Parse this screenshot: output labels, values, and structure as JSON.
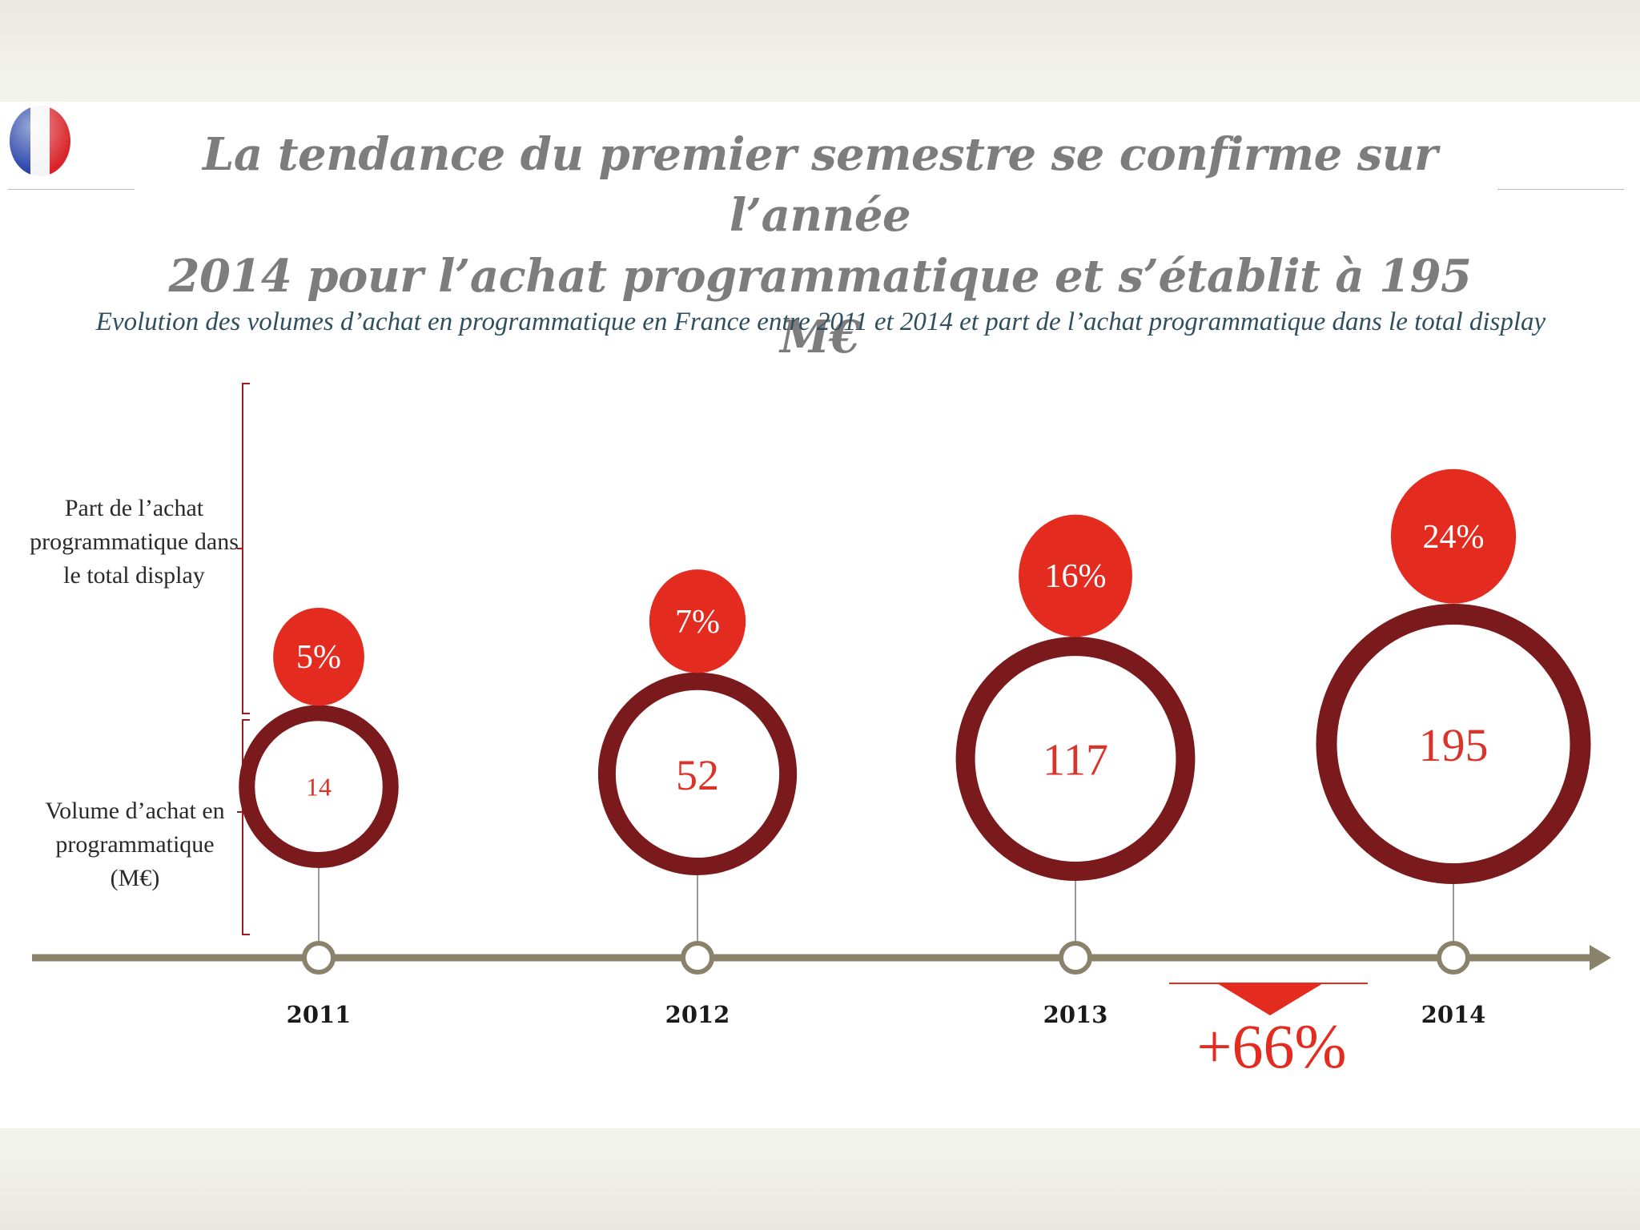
{
  "title_lines": [
    "La tendance du premier semestre se confirme sur l’année",
    "2014 pour l’achat programmatique et s’établit à 195 M€"
  ],
  "colors": {
    "accent_red": "#e32b1f",
    "dark_red": "#7a1a1c",
    "timeline": "#8b826c",
    "text_red": "#d8342a"
  },
  "chart_data": {
    "type": "bubble-timeline",
    "title": "Evolution des volumes d’achat en programmatique en France entre 2011 et 2014 et part de l’achat programmatique dans le total display",
    "row_labels": {
      "share": "Part de l’achat programmatique dans le total display",
      "volume": "Volume d’achat en programmatique (M€)"
    },
    "categories": [
      "2011",
      "2012",
      "2013",
      "2014"
    ],
    "series": [
      {
        "name": "Volume d’achat en programmatique (M€)",
        "values": [
          14,
          52,
          117,
          195
        ]
      },
      {
        "name": "Part de l’achat programmatique dans le total display",
        "values": [
          5,
          7,
          16,
          24
        ],
        "unit": "%"
      }
    ],
    "share_labels": [
      "5%",
      "7%",
      "16%",
      "24%"
    ],
    "volume_labels": [
      "14",
      "52",
      "117",
      "195"
    ],
    "annotation": {
      "text": "+66%",
      "between": [
        "2013",
        "2014"
      ]
    }
  }
}
